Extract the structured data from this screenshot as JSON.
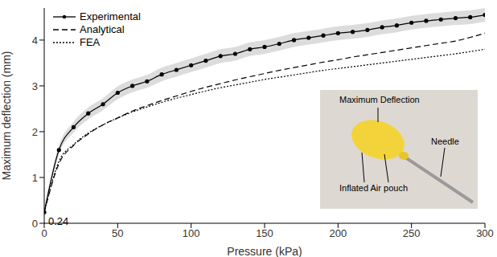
{
  "chart_data": {
    "type": "line",
    "x_label": "Pressure (kPa)",
    "y_label": "Maximum deflection (mm)",
    "x": [
      0,
      10,
      20,
      30,
      40,
      50,
      60,
      70,
      80,
      90,
      100,
      110,
      120,
      130,
      140,
      150,
      160,
      170,
      180,
      190,
      200,
      210,
      220,
      230,
      240,
      250,
      260,
      270,
      280,
      290,
      300
    ],
    "series": [
      {
        "name": "Experimental",
        "color": "#000000",
        "line_style": "solid",
        "marker": "circle",
        "values": [
          0.24,
          1.6,
          2.1,
          2.4,
          2.6,
          2.85,
          3.0,
          3.1,
          3.25,
          3.35,
          3.45,
          3.55,
          3.65,
          3.7,
          3.8,
          3.85,
          3.92,
          4.0,
          4.05,
          4.1,
          4.15,
          4.18,
          4.22,
          4.28,
          4.32,
          4.38,
          4.42,
          4.45,
          4.48,
          4.5,
          4.55
        ],
        "error": [
          0.08,
          0.1,
          0.12,
          0.13,
          0.13,
          0.14,
          0.14,
          0.14,
          0.15,
          0.15,
          0.15,
          0.15,
          0.15,
          0.15,
          0.15,
          0.15,
          0.15,
          0.15,
          0.15,
          0.15,
          0.15,
          0.15,
          0.15,
          0.15,
          0.15,
          0.15,
          0.15,
          0.15,
          0.15,
          0.15,
          0.15
        ]
      },
      {
        "name": "Analytical",
        "color": "#000000",
        "line_style": "dashed",
        "marker": "none",
        "values": [
          0.24,
          1.3,
          1.7,
          1.95,
          2.15,
          2.3,
          2.45,
          2.57,
          2.68,
          2.78,
          2.88,
          2.97,
          3.05,
          3.13,
          3.2,
          3.27,
          3.34,
          3.4,
          3.46,
          3.52,
          3.57,
          3.63,
          3.68,
          3.73,
          3.78,
          3.83,
          3.88,
          3.93,
          3.98,
          4.06,
          4.15
        ]
      },
      {
        "name": "FEA",
        "color": "#000000",
        "line_style": "dotted",
        "marker": "none",
        "values": [
          0.24,
          1.35,
          1.72,
          1.97,
          2.15,
          2.3,
          2.43,
          2.54,
          2.64,
          2.73,
          2.81,
          2.89,
          2.96,
          3.02,
          3.08,
          3.14,
          3.19,
          3.24,
          3.29,
          3.34,
          3.38,
          3.42,
          3.46,
          3.5,
          3.54,
          3.58,
          3.62,
          3.66,
          3.7,
          3.75,
          3.8
        ]
      }
    ],
    "xlim": [
      0,
      300
    ],
    "xticks": [
      0,
      50,
      100,
      150,
      200,
      250,
      300
    ],
    "ylim": [
      0,
      4.7
    ],
    "yticks": [
      0,
      1,
      2,
      3,
      4
    ],
    "legend": "top-left",
    "annotations": [
      {
        "text": "0.24",
        "x": 0,
        "y": 0.24
      }
    ],
    "inset_labels": [
      "Maximum Deflection",
      "Inflated Air pouch",
      "Needle"
    ]
  }
}
